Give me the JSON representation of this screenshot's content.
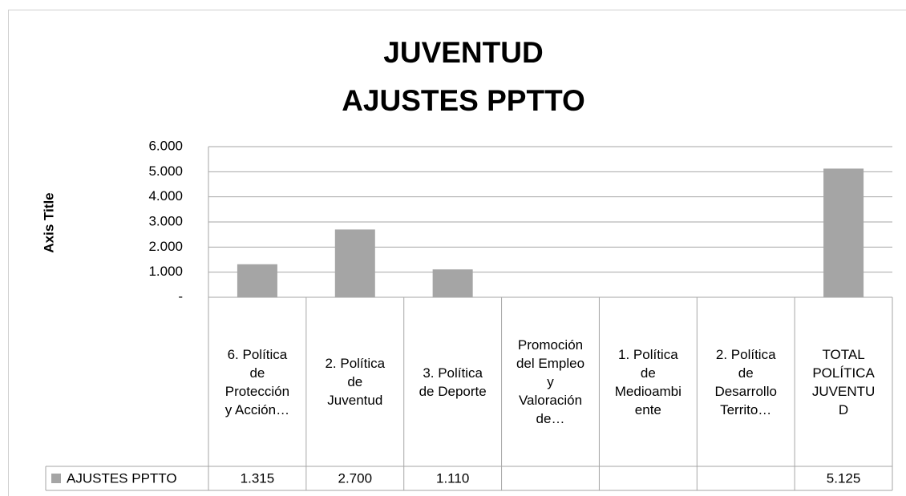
{
  "chart_data": {
    "type": "bar",
    "title": [
      "JUVENTUD",
      "AJUSTES PPTTO"
    ],
    "y_axis_label": "Axis Title",
    "categories": [
      "6. Política de Protección y Acción…",
      "2. Política de Juventud",
      "3. Política de Deporte",
      "Promoción del Empleo y Valoración de…",
      "1. Política de Medioambiente",
      "2. Política de Desarrollo Territo…",
      "TOTAL POLÍTICA JUVENTUD"
    ],
    "series": [
      {
        "name": "AJUSTES PPTTO",
        "color": "#a5a5a5",
        "values": [
          1315,
          2700,
          1110,
          null,
          null,
          null,
          5125
        ],
        "value_labels": [
          "1.315",
          "2.700",
          "1.110",
          null,
          null,
          null,
          "5.125"
        ]
      }
    ],
    "ylim": [
      0,
      6000
    ],
    "yticks": [
      {
        "value": 0,
        "label": "-"
      },
      {
        "value": 1000,
        "label": "1.000"
      },
      {
        "value": 2000,
        "label": "2.000"
      },
      {
        "value": 3000,
        "label": "3.000"
      },
      {
        "value": 4000,
        "label": "4.000"
      },
      {
        "value": 5000,
        "label": "5.000"
      },
      {
        "value": 6000,
        "label": "6.000"
      }
    ],
    "grid": true,
    "data_table": true
  }
}
